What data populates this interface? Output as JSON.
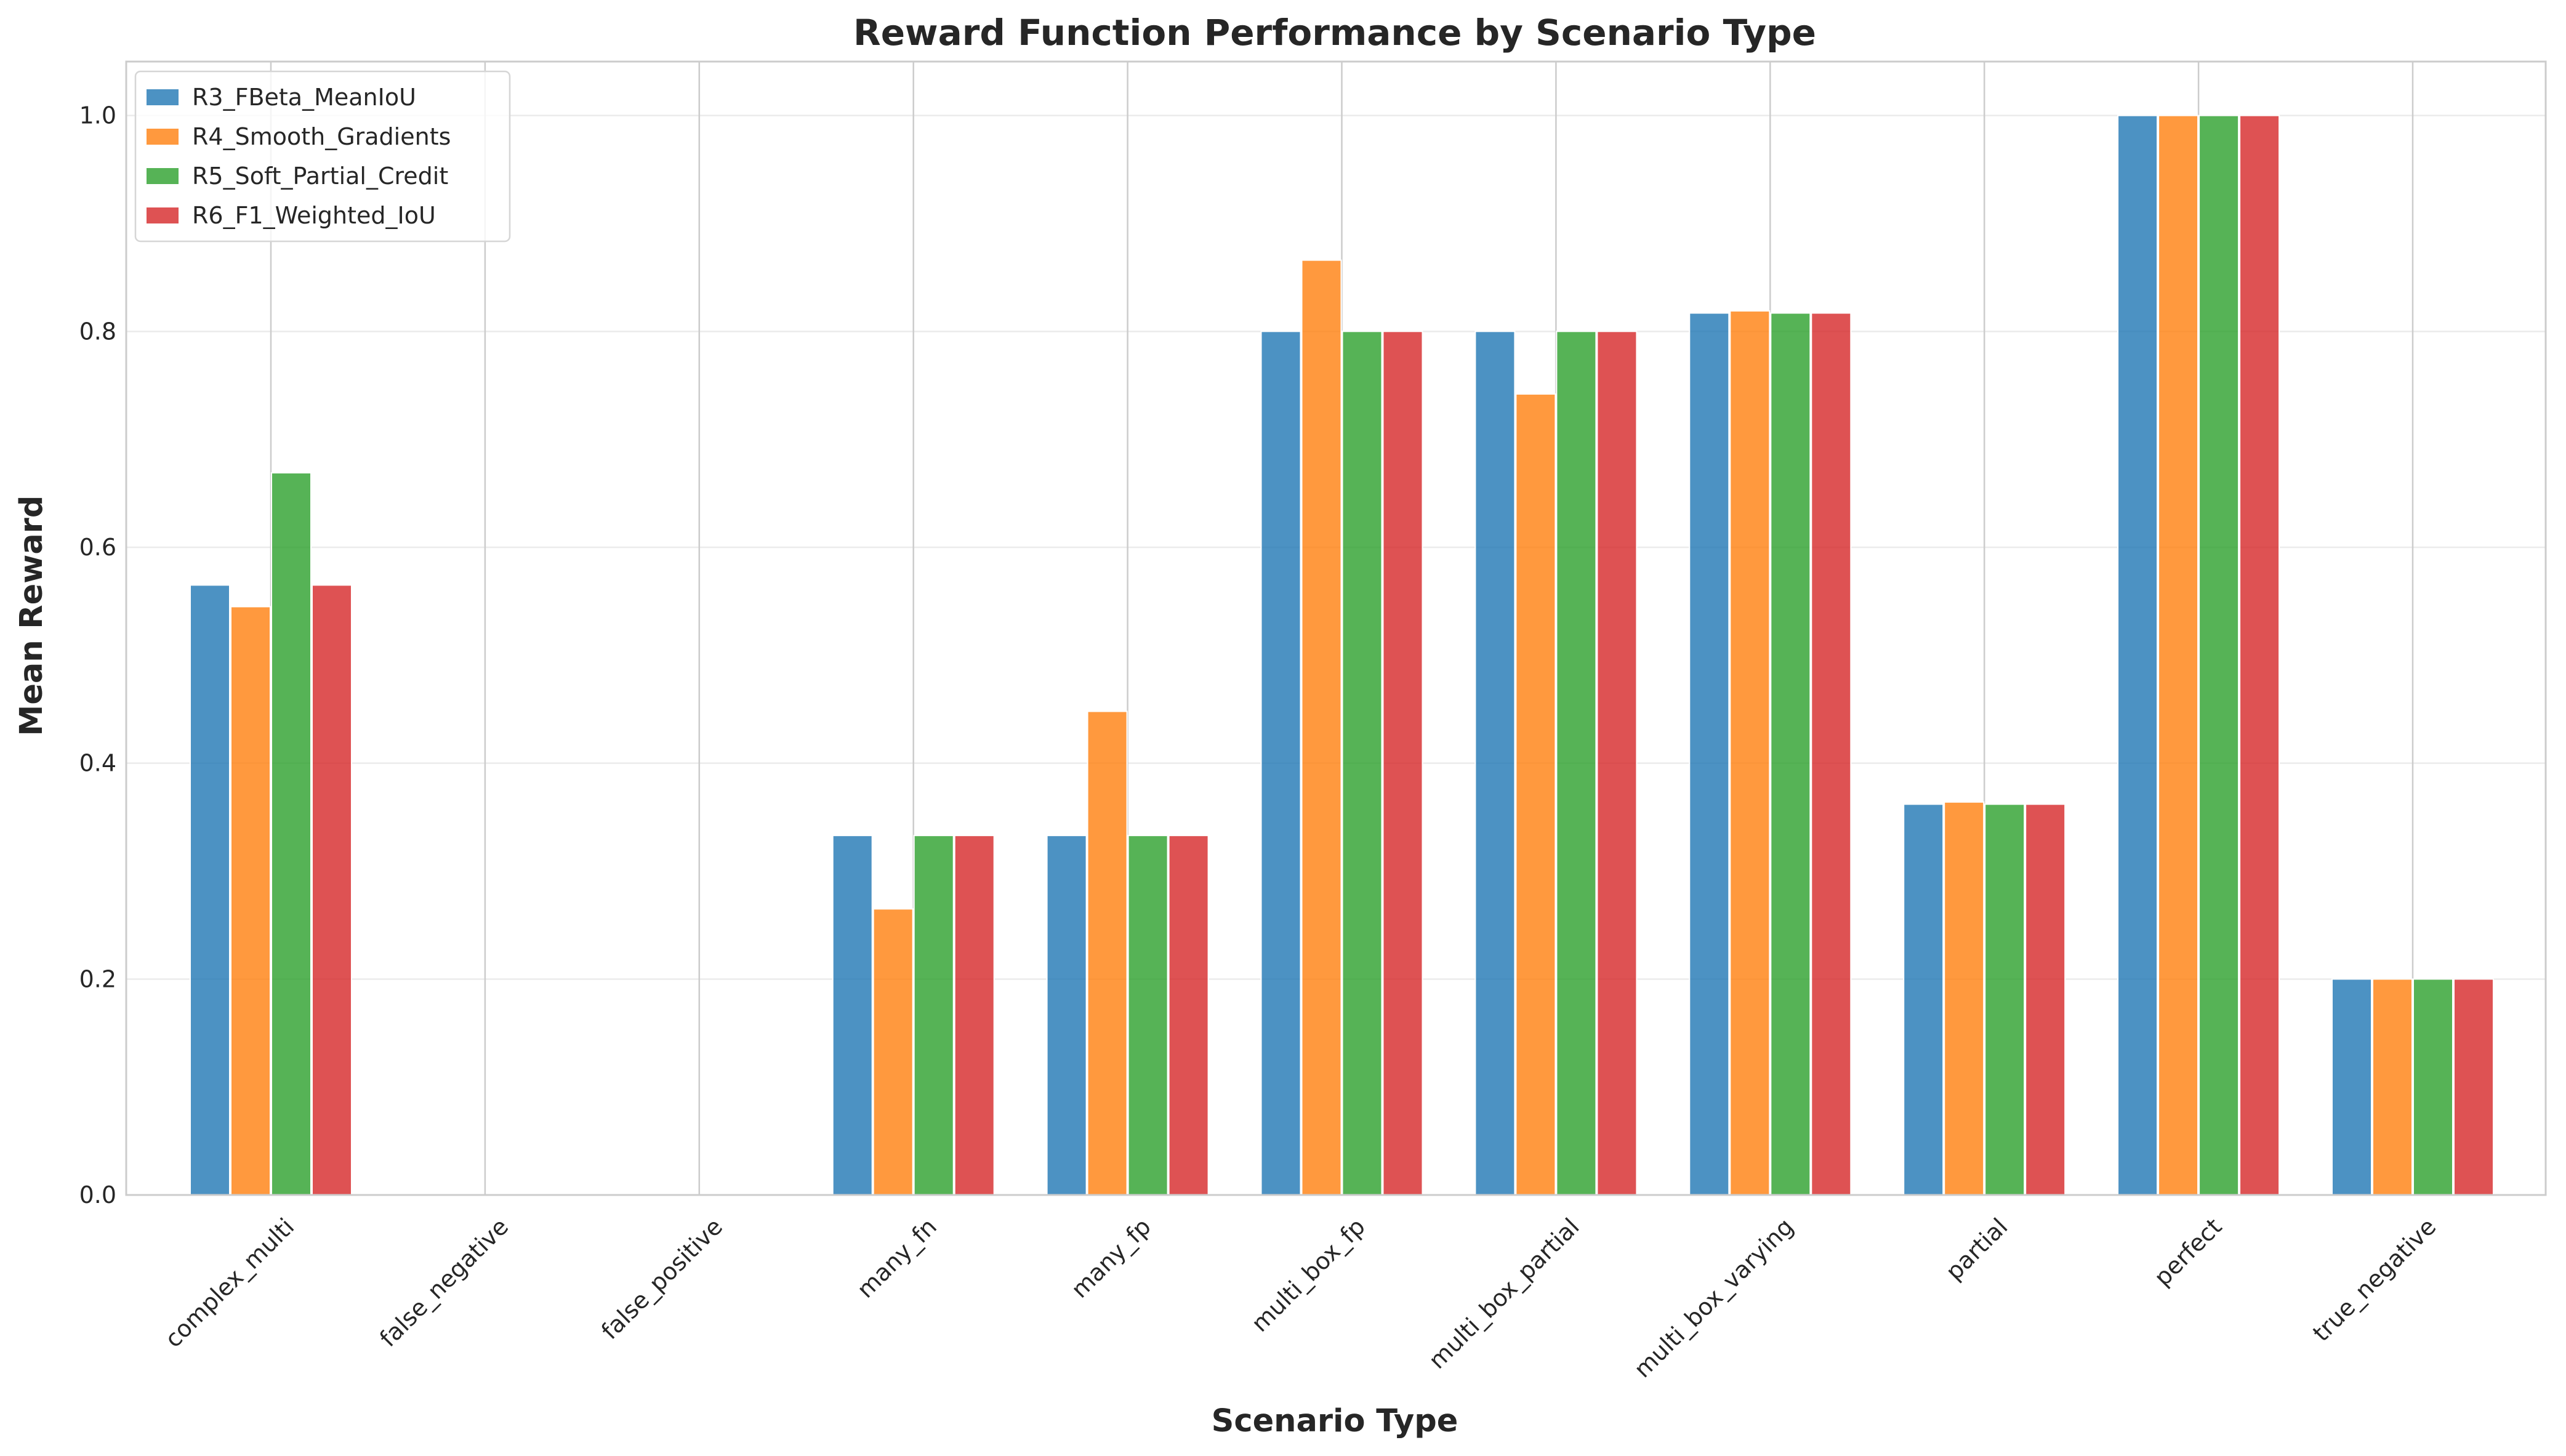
{
  "chart_data": {
    "type": "bar",
    "title": "Reward Function Performance by Scenario Type",
    "xlabel": "Scenario Type",
    "ylabel": "Mean Reward",
    "ylim": [
      0,
      1.05
    ],
    "yticks": [
      "0.0",
      "0.2",
      "0.4",
      "0.6",
      "0.8",
      "1.0"
    ],
    "grid": true,
    "legend_position": "top-left",
    "categories": [
      "complex_multi",
      "false_negative",
      "false_positive",
      "many_fn",
      "many_fp",
      "multi_box_fp",
      "multi_box_partial",
      "multi_box_varying",
      "partial",
      "perfect",
      "true_negative"
    ],
    "series": [
      {
        "name": "R3_FBeta_MeanIoU",
        "color": "#1f77b4",
        "values": [
          0.565,
          0,
          0,
          0.333,
          0.333,
          0.8,
          0.8,
          0.817,
          0.362,
          1.0,
          0.2
        ]
      },
      {
        "name": "R4_Smooth_Gradients",
        "color": "#ff7f0e",
        "values": [
          0.545,
          0,
          0,
          0.265,
          0.448,
          0.866,
          0.742,
          0.819,
          0.364,
          1.0,
          0.2
        ]
      },
      {
        "name": "R5_Soft_Partial_Credit",
        "color": "#2ca02c",
        "values": [
          0.669,
          0,
          0,
          0.333,
          0.333,
          0.8,
          0.8,
          0.817,
          0.362,
          1.0,
          0.2
        ]
      },
      {
        "name": "R6_F1_Weighted_IoU",
        "color": "#d62728",
        "values": [
          0.565,
          0,
          0,
          0.333,
          0.333,
          0.8,
          0.8,
          0.817,
          0.362,
          1.0,
          0.2
        ]
      }
    ]
  }
}
